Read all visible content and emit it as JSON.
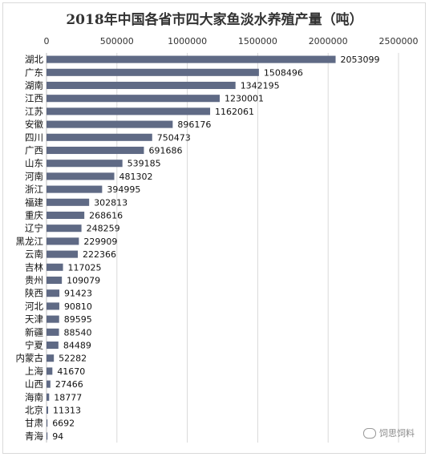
{
  "chart_data": {
    "type": "bar",
    "orientation": "horizontal",
    "title": "2018年中国各省市四大家鱼淡水养殖产量（吨）",
    "xlim": [
      0,
      2500000
    ],
    "xticks": [
      0,
      500000,
      1000000,
      1500000,
      2000000,
      2500000
    ],
    "x_axis_position": "top",
    "grid": true,
    "bar_color": "#5f6a85",
    "categories": [
      "湖北",
      "广东",
      "湖南",
      "江西",
      "江苏",
      "安徽",
      "四川",
      "广西",
      "山东",
      "河南",
      "浙江",
      "福建",
      "重庆",
      "辽宁",
      "黑龙江",
      "云南",
      "吉林",
      "贵州",
      "陕西",
      "河北",
      "天津",
      "新疆",
      "宁夏",
      "内蒙古",
      "上海",
      "山西",
      "海南",
      "北京",
      "甘肃",
      "青海"
    ],
    "values": [
      2053099,
      1508496,
      1342195,
      1230001,
      1162061,
      896176,
      750473,
      691686,
      539185,
      481302,
      394995,
      302813,
      268616,
      248259,
      229909,
      222366,
      117025,
      109079,
      91423,
      90810,
      89595,
      88540,
      84489,
      52282,
      41670,
      27466,
      18777,
      11313,
      6692,
      94
    ]
  },
  "watermark": {
    "text": "饲思饲料",
    "icon": "wechat-icon"
  }
}
